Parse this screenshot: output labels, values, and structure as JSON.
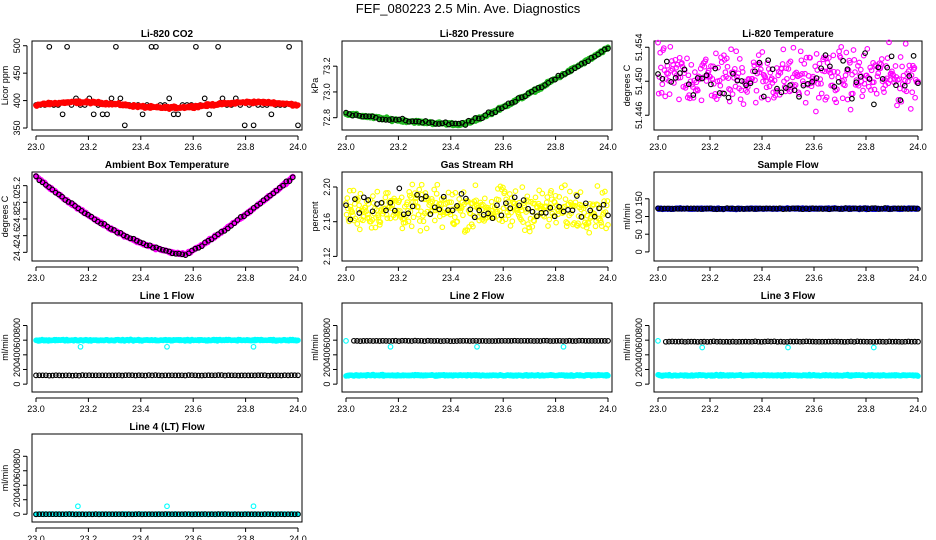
{
  "figure_title": "FEF_080223  2.5 Min. Ave. Diagnostics",
  "colors": {
    "black": "#000000",
    "red": "#ff0000",
    "green": "#22bb22",
    "magenta": "#ff00ff",
    "yellow": "#ffff00",
    "blue": "#0000cc",
    "cyan": "#00ffff"
  },
  "chart_data": [
    {
      "type": "scatter",
      "title": "Li-820 CO2",
      "ylabel": "Licor ppm",
      "xlim": [
        23.0,
        24.0
      ],
      "ylim": [
        350,
        505
      ],
      "xticks": [
        23.0,
        23.2,
        23.4,
        23.6,
        23.8,
        24.0
      ],
      "xtick_labels": [
        "23.0",
        "23.2",
        "23.4",
        "23.6",
        "23.8",
        "24.0"
      ],
      "yticks": [
        350,
        400,
        450,
        500
      ],
      "ytick_labels": [
        "350",
        "400",
        "450",
        "500"
      ],
      "series": [
        {
          "name": "raw",
          "kind": "points",
          "color": "#000000",
          "x0": 23.0,
          "x1": 24.0,
          "n": 60,
          "pattern": "levels",
          "levels": [
            355,
            375,
            392,
            404,
            498
          ],
          "weights": [
            0.15,
            0.15,
            0.45,
            0.1,
            0.15
          ]
        },
        {
          "name": "avg",
          "kind": "band",
          "color": "#ff0000",
          "x0": 23.0,
          "x1": 24.0,
          "n": 400,
          "pattern": "flat",
          "base": 392,
          "amp": 5,
          "noise": 2
        }
      ]
    },
    {
      "type": "scatter",
      "title": "Li-820 Pressure",
      "ylabel": "kPa",
      "xlim": [
        23.0,
        24.0
      ],
      "ylim": [
        72.72,
        73.38
      ],
      "xticks": [
        23.0,
        23.2,
        23.4,
        23.6,
        23.8,
        24.0
      ],
      "xtick_labels": [
        "23.0",
        "23.2",
        "23.4",
        "23.6",
        "23.8",
        "24.0"
      ],
      "yticks": [
        72.8,
        73.0,
        73.2
      ],
      "ytick_labels": [
        "72.8",
        "73.0",
        "73.2"
      ],
      "series": [
        {
          "name": "avg",
          "kind": "band",
          "color": "#22bb22",
          "x0": 23.0,
          "x1": 24.0,
          "n": 400,
          "pattern": "vshape",
          "start": 72.83,
          "min": 72.75,
          "min_at": 23.45,
          "end": 73.34,
          "noise": 0.01
        },
        {
          "name": "raw",
          "kind": "points",
          "color": "#000000",
          "x0": 23.0,
          "x1": 24.0,
          "n": 80,
          "pattern": "vshape",
          "start": 72.83,
          "min": 72.75,
          "min_at": 23.45,
          "end": 73.34,
          "noise": 0.012
        }
      ]
    },
    {
      "type": "scatter",
      "title": "Li-820 Temperature",
      "ylabel": "degrees C",
      "xlim": [
        23.0,
        24.0
      ],
      "ylim": [
        51.4445,
        51.4545
      ],
      "xticks": [
        23.0,
        23.2,
        23.4,
        23.6,
        23.8,
        24.0
      ],
      "xtick_labels": [
        "23.0",
        "23.2",
        "23.4",
        "23.6",
        "23.8",
        "24.0"
      ],
      "yticks": [
        51.446,
        51.45,
        51.454
      ],
      "ytick_labels": [
        "51.446",
        "51.450",
        "51.454"
      ],
      "series": [
        {
          "name": "avg",
          "kind": "points",
          "color": "#ff00ff",
          "x0": 23.0,
          "x1": 24.0,
          "n": 360,
          "pattern": "noise",
          "base": 51.4505,
          "noise": 0.0028
        },
        {
          "name": "raw",
          "kind": "points",
          "color": "#000000",
          "x0": 23.0,
          "x1": 24.0,
          "n": 60,
          "pattern": "noise",
          "base": 51.4505,
          "noise": 0.0022
        }
      ]
    },
    {
      "type": "scatter",
      "title": "Ambient Box Temperature",
      "ylabel": "degrees C",
      "xlim": [
        23.0,
        24.0
      ],
      "ylim": [
        24.32,
        25.34
      ],
      "xticks": [
        23.0,
        23.2,
        23.4,
        23.6,
        23.8,
        24.0
      ],
      "xtick_labels": [
        "23.0",
        "23.2",
        "23.4",
        "23.6",
        "23.8",
        "24.0"
      ],
      "yticks": [
        24.4,
        24.6,
        24.8,
        25.0,
        25.2
      ],
      "ytick_labels": [
        "24.4",
        "24.6",
        "24.8",
        "25.0",
        "25.2"
      ],
      "series": [
        {
          "name": "avg",
          "kind": "band",
          "color": "#ff00ff",
          "x0": 23.0,
          "x1": 23.98,
          "n": 400,
          "pattern": "vshape",
          "start": 25.31,
          "min": 24.38,
          "min_at": 23.57,
          "end": 25.3,
          "noise": 0.012
        },
        {
          "name": "raw",
          "kind": "points",
          "color": "#000000",
          "x0": 23.0,
          "x1": 23.98,
          "n": 80,
          "pattern": "vshape",
          "start": 25.31,
          "min": 24.38,
          "min_at": 23.57,
          "end": 25.3,
          "noise": 0.012
        }
      ]
    },
    {
      "type": "scatter",
      "title": "Gas Stream RH",
      "ylabel": "percent",
      "xlim": [
        23.0,
        24.0
      ],
      "ylim": [
        2.117,
        2.215
      ],
      "xticks": [
        23.0,
        23.2,
        23.4,
        23.6,
        23.8,
        24.0
      ],
      "xtick_labels": [
        "23.0",
        "23.2",
        "23.4",
        "23.6",
        "23.8",
        "24.0"
      ],
      "yticks": [
        2.12,
        2.16,
        2.2
      ],
      "ytick_labels": [
        "2.12",
        "2.16",
        "2.20"
      ],
      "series": [
        {
          "name": "avg",
          "kind": "points",
          "color": "#ffff00",
          "x0": 23.0,
          "x1": 24.0,
          "n": 420,
          "pattern": "noise",
          "base": 2.175,
          "noise": 0.02
        },
        {
          "name": "raw",
          "kind": "points",
          "color": "#000000",
          "x0": 23.0,
          "x1": 24.0,
          "n": 60,
          "pattern": "noise",
          "base": 2.178,
          "noise": 0.014
        }
      ]
    },
    {
      "type": "scatter",
      "title": "Sample Flow",
      "ylabel": "ml/min",
      "xlim": [
        23.0,
        24.0
      ],
      "ylim": [
        -20,
        220
      ],
      "xticks": [
        23.0,
        23.2,
        23.4,
        23.6,
        23.8,
        24.0
      ],
      "xtick_labels": [
        "23.0",
        "23.2",
        "23.4",
        "23.6",
        "23.8",
        "24.0"
      ],
      "yticks": [
        0,
        50,
        100,
        150
      ],
      "ytick_labels": [
        "0",
        "50",
        "100",
        "150"
      ],
      "series": [
        {
          "name": "avg",
          "kind": "band",
          "color": "#0000cc",
          "x0": 23.0,
          "x1": 24.0,
          "n": 400,
          "pattern": "flat",
          "base": 122,
          "amp": 0,
          "noise": 1.5
        },
        {
          "name": "raw",
          "kind": "points",
          "color": "#000000",
          "x0": 23.0,
          "x1": 24.0,
          "n": 80,
          "pattern": "flat",
          "base": 122,
          "amp": 0,
          "noise": 1.5
        }
      ]
    },
    {
      "type": "scatter",
      "title": "Line 1 Flow",
      "ylabel": "ml/min",
      "xlim": [
        23.0,
        24.0
      ],
      "ylim": [
        -80,
        1080
      ],
      "xticks": [
        23.0,
        23.2,
        23.4,
        23.6,
        23.8,
        24.0
      ],
      "xtick_labels": [
        "23.0",
        "23.2",
        "23.4",
        "23.6",
        "23.8",
        "24.0"
      ],
      "yticks": [
        0,
        200,
        400,
        600,
        800
      ],
      "ytick_labels": [
        "0",
        "200",
        "400",
        "600",
        "800"
      ],
      "series": [
        {
          "name": "avg",
          "kind": "band",
          "color": "#00ffff",
          "x0": 23.0,
          "x1": 24.0,
          "n": 300,
          "pattern": "flat",
          "base": 600,
          "amp": 0,
          "noise": 8
        },
        {
          "name": "avg-low",
          "kind": "points",
          "color": "#00ffff",
          "x0": 23.0,
          "x1": 24.0,
          "n": 3,
          "pattern": "list",
          "xs": [
            23.17,
            23.5,
            23.83
          ],
          "ys": [
            510,
            510,
            510
          ]
        },
        {
          "name": "raw",
          "kind": "points",
          "color": "#000000",
          "x0": 23.0,
          "x1": 24.0,
          "n": 80,
          "pattern": "flat",
          "base": 120,
          "amp": 0,
          "noise": 3
        }
      ]
    },
    {
      "type": "scatter",
      "title": "Line 2 Flow",
      "ylabel": "ml/min",
      "xlim": [
        23.0,
        24.0
      ],
      "ylim": [
        -80,
        1080
      ],
      "xticks": [
        23.0,
        23.2,
        23.4,
        23.6,
        23.8,
        24.0
      ],
      "xtick_labels": [
        "23.0",
        "23.2",
        "23.4",
        "23.6",
        "23.8",
        "24.0"
      ],
      "yticks": [
        0,
        200,
        400,
        600,
        800
      ],
      "ytick_labels": [
        "0",
        "200",
        "400",
        "600",
        "800"
      ],
      "series": [
        {
          "name": "avg",
          "kind": "band",
          "color": "#00ffff",
          "x0": 23.0,
          "x1": 24.0,
          "n": 300,
          "pattern": "flat",
          "base": 120,
          "amp": 0,
          "noise": 8
        },
        {
          "name": "avg-low",
          "kind": "points",
          "color": "#00ffff",
          "x0": 23.0,
          "x1": 24.0,
          "n": 4,
          "pattern": "list",
          "xs": [
            23.0,
            23.17,
            23.5,
            23.83
          ],
          "ys": [
            590,
            510,
            510,
            510
          ]
        },
        {
          "name": "raw",
          "kind": "points",
          "color": "#000000",
          "x0": 23.03,
          "x1": 24.0,
          "n": 80,
          "pattern": "flat",
          "base": 590,
          "amp": 0,
          "noise": 3
        }
      ]
    },
    {
      "type": "scatter",
      "title": "Line 3 Flow",
      "ylabel": "ml/min",
      "xlim": [
        23.0,
        24.0
      ],
      "ylim": [
        -80,
        1080
      ],
      "xticks": [
        23.0,
        23.2,
        23.4,
        23.6,
        23.8,
        24.0
      ],
      "xtick_labels": [
        "23.0",
        "23.2",
        "23.4",
        "23.6",
        "23.8",
        "24.0"
      ],
      "yticks": [
        0,
        200,
        400,
        600,
        800
      ],
      "ytick_labels": [
        "0",
        "200",
        "400",
        "600",
        "800"
      ],
      "series": [
        {
          "name": "avg",
          "kind": "band",
          "color": "#00ffff",
          "x0": 23.0,
          "x1": 24.0,
          "n": 300,
          "pattern": "flat",
          "base": 120,
          "amp": 0,
          "noise": 8
        },
        {
          "name": "avg-low",
          "kind": "points",
          "color": "#00ffff",
          "x0": 23.0,
          "x1": 24.0,
          "n": 4,
          "pattern": "list",
          "xs": [
            23.0,
            23.17,
            23.5,
            23.83
          ],
          "ys": [
            590,
            500,
            500,
            500
          ]
        },
        {
          "name": "raw",
          "kind": "points",
          "color": "#000000",
          "x0": 23.03,
          "x1": 24.0,
          "n": 80,
          "pattern": "flat",
          "base": 580,
          "amp": 0,
          "noise": 3
        }
      ]
    },
    {
      "type": "scatter",
      "title": "Line 4 (LT) Flow",
      "ylabel": "ml/min",
      "xlim": [
        23.0,
        24.0
      ],
      "ylim": [
        -80,
        1080
      ],
      "xticks": [
        23.0,
        23.2,
        23.4,
        23.6,
        23.8,
        24.0
      ],
      "xtick_labels": [
        "23.0",
        "23.2",
        "23.4",
        "23.6",
        "23.8",
        "24.0"
      ],
      "yticks": [
        0,
        200,
        400,
        600,
        800
      ],
      "ytick_labels": [
        "0",
        "200",
        "400",
        "600",
        "800"
      ],
      "series": [
        {
          "name": "avg",
          "kind": "band",
          "color": "#00ffff",
          "x0": 23.0,
          "x1": 24.0,
          "n": 300,
          "pattern": "flat",
          "base": 0,
          "amp": 0,
          "noise": 2
        },
        {
          "name": "avg-high",
          "kind": "points",
          "color": "#00ffff",
          "x0": 23.0,
          "x1": 24.0,
          "n": 3,
          "pattern": "list",
          "xs": [
            23.16,
            23.5,
            23.83
          ],
          "ys": [
            110,
            110,
            110
          ]
        },
        {
          "name": "raw",
          "kind": "points",
          "color": "#000000",
          "x0": 23.0,
          "x1": 24.0,
          "n": 80,
          "pattern": "flat",
          "base": 0,
          "amp": 0,
          "noise": 1
        }
      ]
    }
  ]
}
